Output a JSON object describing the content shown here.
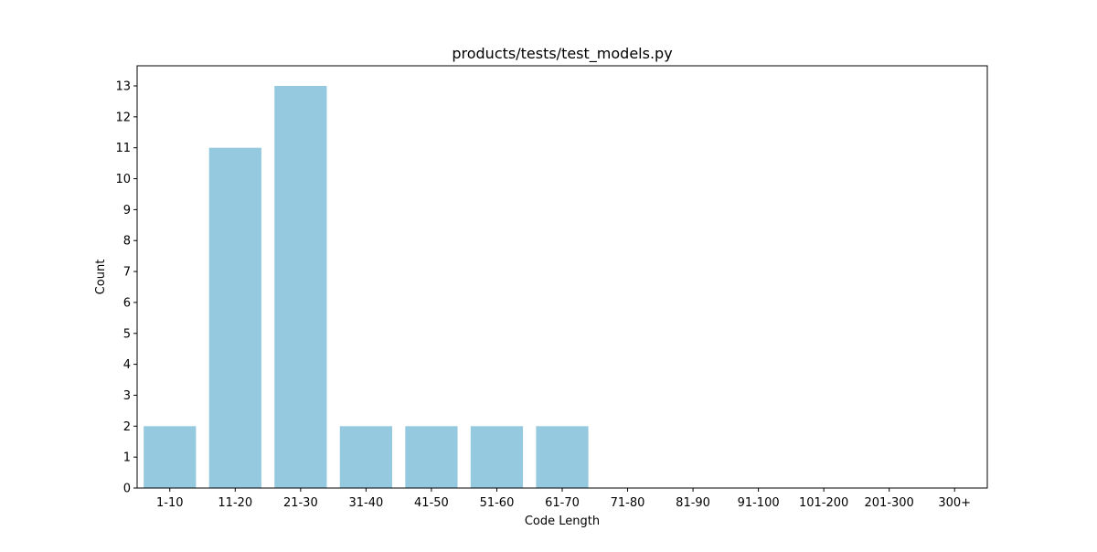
{
  "chart_data": {
    "type": "bar",
    "title": "products/tests/test_models.py",
    "xlabel": "Code Length",
    "ylabel": "Count",
    "categories": [
      "1-10",
      "11-20",
      "21-30",
      "31-40",
      "41-50",
      "51-60",
      "61-70",
      "71-80",
      "81-90",
      "91-100",
      "101-200",
      "201-300",
      "300+"
    ],
    "values": [
      2,
      11,
      13,
      2,
      2,
      2,
      2,
      0,
      0,
      0,
      0,
      0,
      0
    ],
    "yticks": [
      0,
      1,
      2,
      3,
      4,
      5,
      6,
      7,
      8,
      9,
      10,
      11,
      12,
      13
    ],
    "ylim": [
      0,
      13.65
    ],
    "grid": false,
    "bar_color": "#95c9df"
  }
}
